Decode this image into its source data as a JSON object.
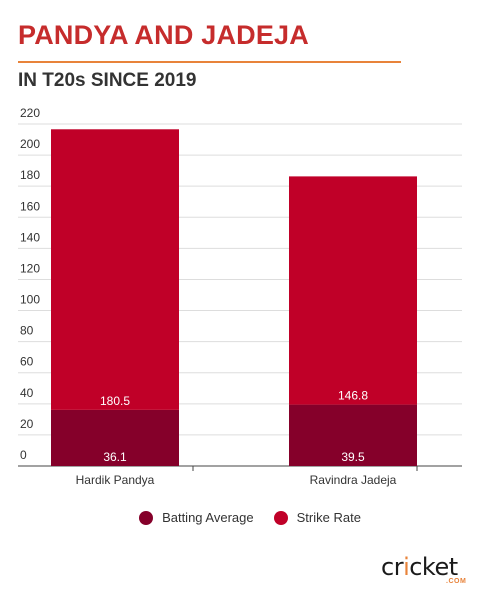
{
  "header": {
    "title": "PANDYA AND JADEJA",
    "subtitle": "IN T20s SINCE 2019"
  },
  "colors": {
    "title": "#c62c2c",
    "rule": "#e8833a",
    "batting_average": "#85002a",
    "strike_rate": "#c00028",
    "grid": "#dddddd",
    "logo_accent": "#e8833a"
  },
  "legend": {
    "batting_average": "Batting Average",
    "strike_rate": "Strike Rate"
  },
  "logo": {
    "text_main": "cricket",
    "text_sub": ".COM"
  },
  "chart_data": {
    "type": "bar",
    "stacked": true,
    "categories": [
      "Hardik Pandya",
      "Ravindra Jadeja"
    ],
    "series": [
      {
        "name": "Batting Average",
        "values": [
          36.1,
          39.5
        ],
        "color": "#85002a"
      },
      {
        "name": "Strike Rate",
        "values": [
          180.5,
          146.8
        ],
        "color": "#c00028"
      }
    ],
    "ylim": [
      0,
      220
    ],
    "yticks": [
      0,
      20,
      40,
      60,
      80,
      100,
      120,
      140,
      160,
      180,
      200,
      220
    ],
    "grid": true,
    "legend_position": "bottom"
  }
}
